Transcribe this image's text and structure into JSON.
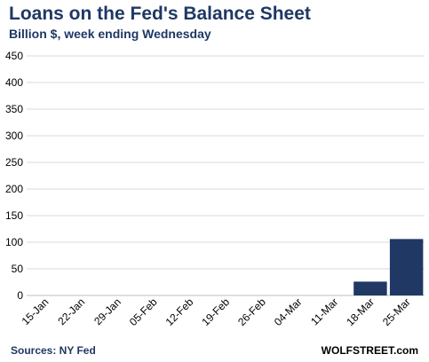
{
  "header": {
    "title": "Loans on the Fed's Balance Sheet",
    "subtitle": "Billion $, week ending Wednesday"
  },
  "footer": {
    "source": "Sources: NY Fed",
    "watermark": "WOLFSTREET.com"
  },
  "colors": {
    "bar": "#1f3864",
    "gridline": "#d9d9d9",
    "title": "#1f3864"
  },
  "chart_data": {
    "type": "bar",
    "title": "Loans on the Fed's Balance Sheet",
    "subtitle": "Billion $, week ending Wednesday",
    "xlabel": "",
    "ylabel": "",
    "categories": [
      "15-Jan",
      "22-Jan",
      "29-Jan",
      "05-Feb",
      "12-Feb",
      "19-Feb",
      "26-Feb",
      "04-Mar",
      "11-Mar",
      "18-Mar",
      "25-Mar"
    ],
    "values": [
      0,
      0,
      0,
      0,
      0,
      0,
      0,
      0,
      0,
      26,
      106
    ],
    "ylim": [
      0,
      450
    ],
    "yticks": [
      0,
      50,
      100,
      150,
      200,
      250,
      300,
      350,
      400,
      450
    ],
    "grid": true,
    "legend": "none"
  }
}
